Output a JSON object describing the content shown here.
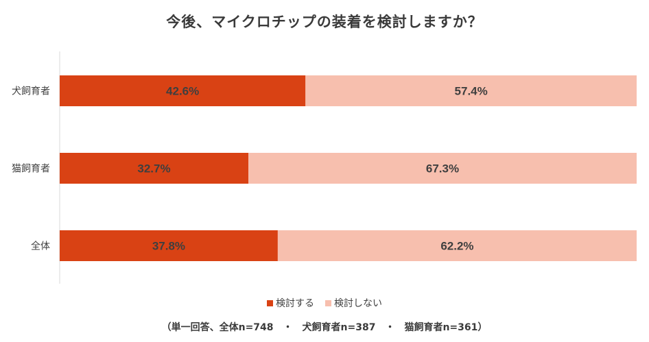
{
  "chart_data": {
    "type": "bar",
    "orientation": "horizontal",
    "stacked": true,
    "percent_stacked": true,
    "title": "今後、マイクロチップの装着を検討しますか？",
    "categories": [
      "犬飼育者",
      "猫飼育者",
      "全体"
    ],
    "series": [
      {
        "name": "検討する",
        "values": [
          42.6,
          32.7,
          37.8
        ],
        "labels": [
          "42.6%",
          "32.7%",
          "37.8%"
        ]
      },
      {
        "name": "検討しない",
        "values": [
          57.4,
          67.3,
          62.2
        ],
        "labels": [
          "57.4%",
          "67.3%",
          "62.2%"
        ]
      }
    ],
    "xlim": [
      0,
      100
    ],
    "grid": false,
    "legend_position": "bottom"
  },
  "colors": {
    "series_0": "#d94214",
    "series_1": "#f7bfae",
    "label_text": "#3f3f3f",
    "axis_line": "#d9d9d9"
  },
  "footnote": "（単一回答、全体n=748　・　犬飼育者n=387　・　猫飼育者n=361）"
}
